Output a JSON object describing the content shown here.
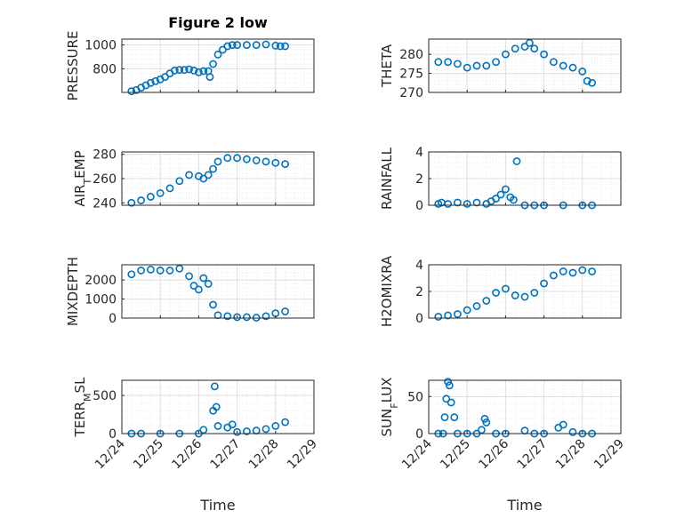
{
  "figure_title": "Figure 2 low",
  "colors": {
    "marker": "#0072BD",
    "axis": "#262626",
    "grid_major": "#dfdfdf",
    "grid_minor": "#ececec"
  },
  "chart_data": [
    {
      "type": "scatter",
      "ylabel": "PRESSURE",
      "xlabel": "",
      "xlim": [
        "12/24",
        "12/29"
      ],
      "ylim": [
        600,
        1050
      ],
      "yticks": [
        800,
        1000
      ],
      "ytick_labels": [
        "800",
        "1000"
      ],
      "grid": true,
      "minor_grid": true,
      "x": [
        "12/24 06:00",
        "12/24 09:00",
        "12/24 12:00",
        "12/24 15:00",
        "12/24 18:00",
        "12/24 21:00",
        "12/25 00:00",
        "12/25 03:00",
        "12/25 06:00",
        "12/25 09:00",
        "12/25 12:00",
        "12/25 15:00",
        "12/25 18:00",
        "12/25 21:00",
        "12/26 00:00",
        "12/26 03:00",
        "12/26 06:00",
        "12/26 07:00",
        "12/26 09:00",
        "12/26 12:00",
        "12/26 15:00",
        "12/26 18:00",
        "12/26 21:00",
        "12/27 00:00",
        "12/27 06:00",
        "12/27 12:00",
        "12/27 18:00",
        "12/28 00:00",
        "12/28 03:00",
        "12/28 06:00"
      ],
      "y": [
        610,
        620,
        640,
        660,
        680,
        695,
        710,
        730,
        760,
        785,
        790,
        790,
        795,
        785,
        770,
        780,
        780,
        730,
        840,
        920,
        960,
        990,
        1000,
        1000,
        1000,
        1000,
        1005,
        995,
        990,
        990
      ]
    },
    {
      "type": "scatter",
      "ylabel": "THETA",
      "xlabel": "",
      "xlim": [
        "12/24",
        "12/29"
      ],
      "ylim": [
        270,
        284
      ],
      "yticks": [
        270,
        275,
        280
      ],
      "ytick_labels": [
        "270",
        "275",
        "280"
      ],
      "grid": true,
      "minor_grid": true,
      "x": [
        "12/24 06:00",
        "12/24 12:00",
        "12/24 18:00",
        "12/25 00:00",
        "12/25 06:00",
        "12/25 12:00",
        "12/25 18:00",
        "12/26 00:00",
        "12/26 06:00",
        "12/26 12:00",
        "12/26 15:00",
        "12/26 18:00",
        "12/27 00:00",
        "12/27 06:00",
        "12/27 12:00",
        "12/27 18:00",
        "12/28 00:00",
        "12/28 03:00",
        "12/28 06:00"
      ],
      "y": [
        278,
        278,
        277.5,
        276.5,
        277,
        277,
        278,
        280,
        281.5,
        282,
        283,
        281.5,
        280,
        278,
        277,
        276.5,
        275.5,
        273,
        272.5
      ]
    },
    {
      "type": "scatter",
      "ylabel": "AIR_TEMP",
      "xlabel": "",
      "xlim": [
        "12/24",
        "12/29"
      ],
      "ylim": [
        238,
        282
      ],
      "yticks": [
        240,
        260,
        280
      ],
      "ytick_labels": [
        "240",
        "260",
        "280"
      ],
      "grid": true,
      "minor_grid": true,
      "x": [
        "12/24 06:00",
        "12/24 12:00",
        "12/24 18:00",
        "12/25 00:00",
        "12/25 06:00",
        "12/25 12:00",
        "12/25 18:00",
        "12/26 00:00",
        "12/26 03:00",
        "12/26 06:00",
        "12/26 09:00",
        "12/26 12:00",
        "12/26 18:00",
        "12/27 00:00",
        "12/27 06:00",
        "12/27 12:00",
        "12/27 18:00",
        "12/28 00:00",
        "12/28 06:00"
      ],
      "y": [
        240,
        242,
        245,
        248,
        252,
        258,
        263,
        262,
        260,
        263,
        268,
        274,
        277,
        277,
        276,
        275,
        274,
        273,
        272
      ]
    },
    {
      "type": "scatter",
      "ylabel": "RAINFALL",
      "xlabel": "",
      "xlim": [
        "12/24",
        "12/29"
      ],
      "ylim": [
        0,
        4
      ],
      "yticks": [
        0,
        2,
        4
      ],
      "ytick_labels": [
        "0",
        "2",
        "4"
      ],
      "grid": true,
      "minor_grid": true,
      "x": [
        "12/24 06:00",
        "12/24 08:00",
        "12/24 12:00",
        "12/24 18:00",
        "12/25 00:00",
        "12/25 06:00",
        "12/25 12:00",
        "12/25 15:00",
        "12/25 18:00",
        "12/25 21:00",
        "12/26 00:00",
        "12/26 03:00",
        "12/26 05:00",
        "12/26 07:00",
        "12/26 12:00",
        "12/26 18:00",
        "12/27 00:00",
        "12/27 12:00",
        "12/28 00:00",
        "12/28 06:00"
      ],
      "y": [
        0.1,
        0.2,
        0.1,
        0.2,
        0.1,
        0.2,
        0.1,
        0.3,
        0.5,
        0.8,
        1.2,
        0.6,
        0.4,
        3.3,
        0,
        0,
        0,
        0,
        0,
        0
      ]
    },
    {
      "type": "scatter",
      "ylabel": "MIXDEPTH",
      "xlabel": "",
      "xlim": [
        "12/24",
        "12/29"
      ],
      "ylim": [
        0,
        2800
      ],
      "yticks": [
        0,
        1000,
        2000
      ],
      "ytick_labels": [
        "0",
        "1000",
        "2000"
      ],
      "grid": true,
      "minor_grid": true,
      "x": [
        "12/24 06:00",
        "12/24 12:00",
        "12/24 18:00",
        "12/25 00:00",
        "12/25 06:00",
        "12/25 12:00",
        "12/25 18:00",
        "12/25 21:00",
        "12/26 00:00",
        "12/26 03:00",
        "12/26 06:00",
        "12/26 09:00",
        "12/26 12:00",
        "12/26 18:00",
        "12/27 00:00",
        "12/27 06:00",
        "12/27 12:00",
        "12/27 18:00",
        "12/28 00:00",
        "12/28 06:00"
      ],
      "y": [
        2300,
        2500,
        2550,
        2500,
        2500,
        2600,
        2200,
        1700,
        1500,
        2100,
        1800,
        700,
        150,
        100,
        50,
        50,
        20,
        100,
        250,
        350
      ]
    },
    {
      "type": "scatter",
      "ylabel": "H2OMIXRA",
      "xlabel": "",
      "xlim": [
        "12/24",
        "12/29"
      ],
      "ylim": [
        0,
        4
      ],
      "yticks": [
        0,
        2,
        4
      ],
      "ytick_labels": [
        "0",
        "2",
        "4"
      ],
      "grid": true,
      "minor_grid": true,
      "x": [
        "12/24 06:00",
        "12/24 12:00",
        "12/24 18:00",
        "12/25 00:00",
        "12/25 06:00",
        "12/25 12:00",
        "12/25 18:00",
        "12/26 00:00",
        "12/26 06:00",
        "12/26 12:00",
        "12/26 18:00",
        "12/27 00:00",
        "12/27 06:00",
        "12/27 12:00",
        "12/27 18:00",
        "12/28 00:00",
        "12/28 06:00"
      ],
      "y": [
        0.1,
        0.2,
        0.3,
        0.6,
        0.9,
        1.3,
        1.9,
        2.2,
        1.7,
        1.6,
        1.9,
        2.6,
        3.2,
        3.5,
        3.4,
        3.6,
        3.5
      ]
    },
    {
      "type": "scatter",
      "ylabel": "TERR_MSL",
      "xlabel": "Time",
      "xlim": [
        "12/24",
        "12/29"
      ],
      "ylim": [
        0,
        700
      ],
      "yticks": [
        0,
        500
      ],
      "ytick_labels": [
        "0",
        "500"
      ],
      "grid": true,
      "minor_grid": true,
      "xticks": [
        "12/24",
        "12/25",
        "12/26",
        "12/27",
        "12/28",
        "12/29"
      ],
      "x": [
        "12/24 06:00",
        "12/24 12:00",
        "12/25 00:00",
        "12/25 12:00",
        "12/26 00:00",
        "12/26 03:00",
        "12/26 09:00",
        "12/26 10:00",
        "12/26 11:00",
        "12/26 12:00",
        "12/26 18:00",
        "12/26 21:00",
        "12/27 00:00",
        "12/27 06:00",
        "12/27 12:00",
        "12/27 18:00",
        "12/28 00:00",
        "12/28 06:00"
      ],
      "y": [
        0,
        0,
        0,
        0,
        0,
        50,
        300,
        620,
        350,
        100,
        80,
        120,
        20,
        30,
        40,
        60,
        100,
        150
      ]
    },
    {
      "type": "scatter",
      "ylabel": "SUN_FLUX",
      "xlabel": "Time",
      "xlim": [
        "12/24",
        "12/29"
      ],
      "ylim": [
        0,
        72
      ],
      "yticks": [
        0,
        50
      ],
      "ytick_labels": [
        "0",
        "50"
      ],
      "grid": true,
      "minor_grid": true,
      "xticks": [
        "12/24",
        "12/25",
        "12/26",
        "12/27",
        "12/28",
        "12/29"
      ],
      "x": [
        "12/24 06:00",
        "12/24 09:00",
        "12/24 10:00",
        "12/24 11:00",
        "12/24 12:00",
        "12/24 13:00",
        "12/24 14:00",
        "12/24 16:00",
        "12/24 18:00",
        "12/25 00:00",
        "12/25 06:00",
        "12/25 09:00",
        "12/25 11:00",
        "12/25 12:00",
        "12/25 18:00",
        "12/26 00:00",
        "12/26 12:00",
        "12/26 18:00",
        "12/27 00:00",
        "12/27 09:00",
        "12/27 12:00",
        "12/27 18:00",
        "12/28 00:00",
        "12/28 06:00"
      ],
      "y": [
        0,
        0,
        22,
        47,
        70,
        65,
        42,
        22,
        0,
        0,
        0,
        5,
        20,
        15,
        0,
        0,
        4,
        0,
        0,
        8,
        12,
        2,
        0,
        0
      ]
    }
  ]
}
